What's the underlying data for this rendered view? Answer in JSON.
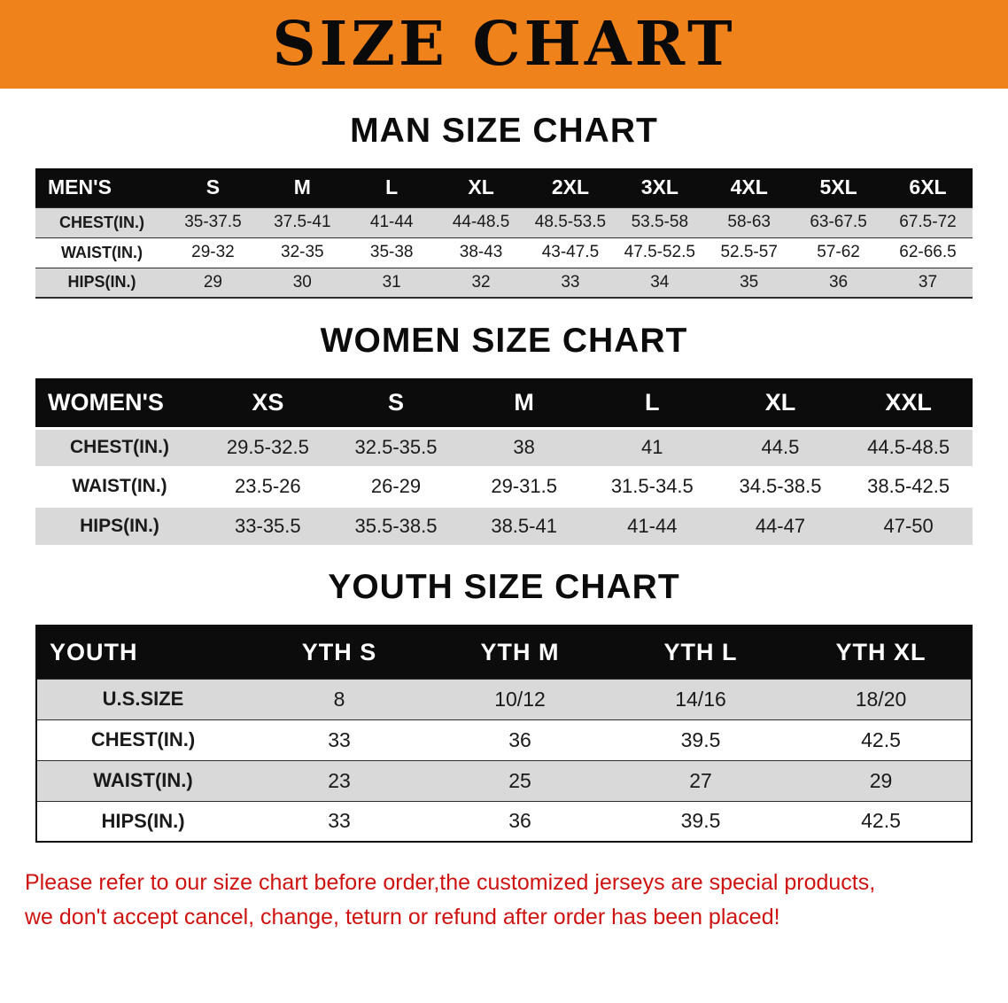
{
  "banner": {
    "title": "SIZE CHART"
  },
  "colors": {
    "banner_bg": "#f0821c",
    "table_header_bg": "#0c0c0c",
    "row_gray": "#d9d9d9",
    "note_red": "#cf1310"
  },
  "chart_data": [
    {
      "type": "table",
      "title": "MAN SIZE CHART",
      "header": [
        "MEN'S",
        "S",
        "M",
        "L",
        "XL",
        "2XL",
        "3XL",
        "4XL",
        "5XL",
        "6XL"
      ],
      "rows": [
        {
          "label": "CHEST(IN.)",
          "values": [
            "35-37.5",
            "37.5-41",
            "41-44",
            "44-48.5",
            "48.5-53.5",
            "53.5-58",
            "58-63",
            "63-67.5",
            "67.5-72"
          ]
        },
        {
          "label": "WAIST(IN.)",
          "values": [
            "29-32",
            "32-35",
            "35-38",
            "38-43",
            "43-47.5",
            "47.5-52.5",
            "52.5-57",
            "57-62",
            "62-66.5"
          ]
        },
        {
          "label": "HIPS(IN.)",
          "values": [
            "29",
            "30",
            "31",
            "32",
            "33",
            "34",
            "35",
            "36",
            "37"
          ]
        }
      ]
    },
    {
      "type": "table",
      "title": "WOMEN SIZE CHART",
      "header": [
        "WOMEN'S",
        "XS",
        "S",
        "M",
        "L",
        "XL",
        "XXL"
      ],
      "rows": [
        {
          "label": "CHEST(IN.)",
          "values": [
            "29.5-32.5",
            "32.5-35.5",
            "38",
            "41",
            "44.5",
            "44.5-48.5"
          ]
        },
        {
          "label": "WAIST(IN.)",
          "values": [
            "23.5-26",
            "26-29",
            "29-31.5",
            "31.5-34.5",
            "34.5-38.5",
            "38.5-42.5"
          ]
        },
        {
          "label": "HIPS(IN.)",
          "values": [
            "33-35.5",
            "35.5-38.5",
            "38.5-41",
            "41-44",
            "44-47",
            "47-50"
          ]
        }
      ]
    },
    {
      "type": "table",
      "title": "YOUTH SIZE CHART",
      "header": [
        "YOUTH",
        "YTH S",
        "YTH M",
        "YTH L",
        "YTH XL"
      ],
      "rows": [
        {
          "label": "U.S.SIZE",
          "values": [
            "8",
            "10/12",
            "14/16",
            "18/20"
          ]
        },
        {
          "label": "CHEST(IN.)",
          "values": [
            "33",
            "36",
            "39.5",
            "42.5"
          ]
        },
        {
          "label": "WAIST(IN.)",
          "values": [
            "23",
            "25",
            "27",
            "29"
          ]
        },
        {
          "label": "HIPS(IN.)",
          "values": [
            "33",
            "36",
            "39.5",
            "42.5"
          ]
        }
      ]
    }
  ],
  "footer": {
    "line1": "Please refer to our size chart before order,the customized jerseys are special products,",
    "line2": "we don't accept cancel, change, teturn or refund after order has been placed!"
  }
}
